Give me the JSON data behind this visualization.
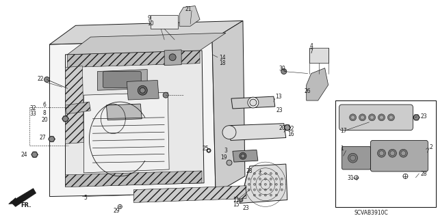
{
  "bg_color": "#ffffff",
  "line_color": "#1a1a1a",
  "part_code": "SCVAB3910C",
  "fig_width": 6.4,
  "fig_height": 3.19,
  "dpi": 100
}
